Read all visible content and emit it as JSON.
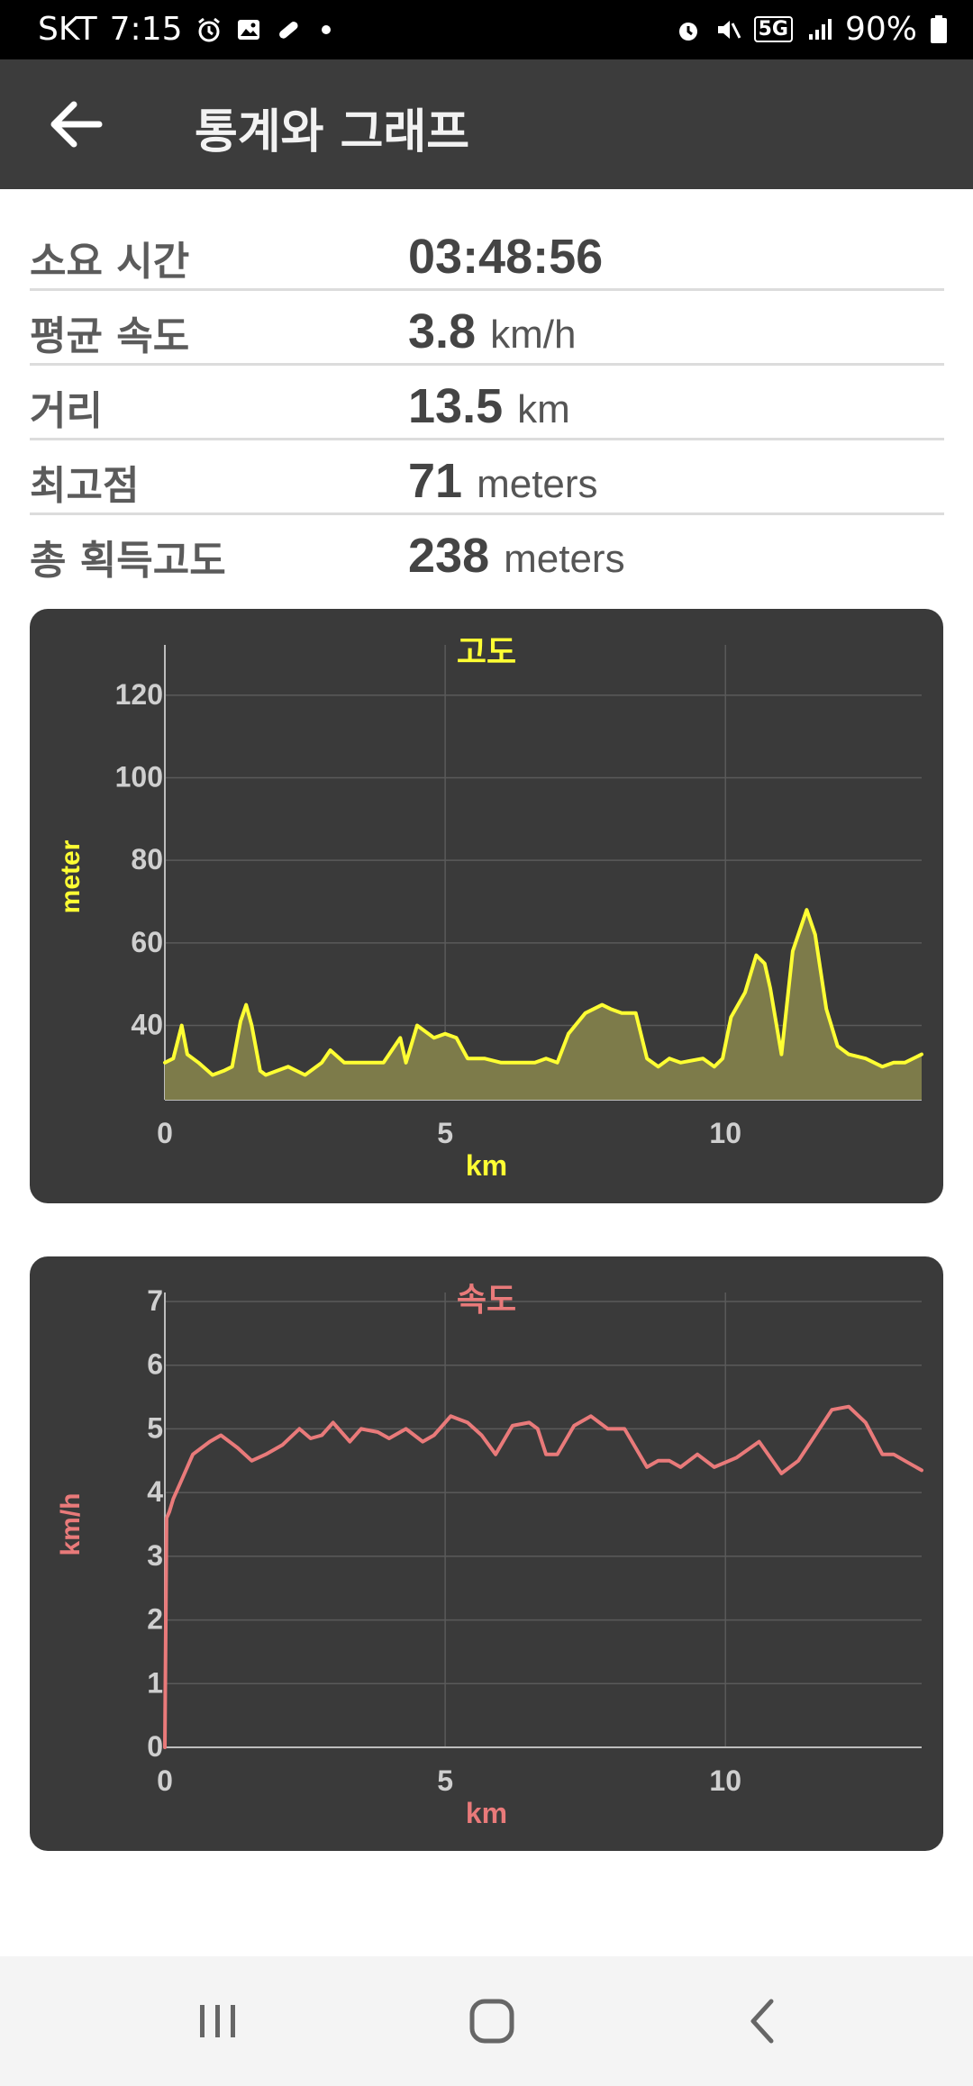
{
  "status_bar": {
    "carrier": "SKT",
    "time": "7:15",
    "battery": "90%",
    "network": "5G"
  },
  "app_bar": {
    "title": "통계와 그래프"
  },
  "stats": [
    {
      "label": "소요 시간",
      "value": "03:48:56",
      "unit": ""
    },
    {
      "label": "평균 속도",
      "value": "3.8",
      "unit": "km/h"
    },
    {
      "label": "거리",
      "value": "13.5",
      "unit": "km"
    },
    {
      "label": "최고점",
      "value": "71",
      "unit": "meters"
    },
    {
      "label": "총 획득고도",
      "value": "238",
      "unit": "meters"
    }
  ],
  "colors": {
    "elevation": "#ffff33",
    "elevation_fill": "#7d7b4a",
    "speed": "#e97a7a",
    "card": "#3a3a3a",
    "grid": "#5a5a5a",
    "tick": "#cfcfcf"
  },
  "chart_data": [
    {
      "type": "area",
      "title": "고도",
      "xlabel": "km",
      "ylabel": "meter",
      "xlim": [
        0,
        13.5
      ],
      "ylim": [
        22,
        130
      ],
      "x_ticks": [
        0,
        5,
        10
      ],
      "y_ticks": [
        40,
        60,
        80,
        100,
        120
      ],
      "grid": true,
      "x": [
        0,
        0.15,
        0.3,
        0.4,
        0.6,
        0.85,
        1.05,
        1.2,
        1.35,
        1.45,
        1.55,
        1.7,
        1.8,
        2.0,
        2.2,
        2.5,
        2.8,
        2.95,
        3.2,
        3.6,
        3.9,
        4.05,
        4.2,
        4.3,
        4.5,
        4.8,
        5.0,
        5.2,
        5.4,
        5.7,
        6.0,
        6.3,
        6.6,
        6.8,
        7.0,
        7.2,
        7.5,
        7.8,
        7.95,
        8.15,
        8.4,
        8.6,
        8.8,
        9.0,
        9.2,
        9.6,
        9.8,
        9.95,
        10.1,
        10.35,
        10.55,
        10.7,
        10.8,
        11.0,
        11.2,
        11.45,
        11.6,
        11.8,
        12.0,
        12.2,
        12.5,
        12.8,
        13.0,
        13.2,
        13.5
      ],
      "values": [
        31,
        32,
        40,
        33,
        31,
        28,
        29,
        30,
        41,
        45,
        40,
        29,
        28,
        29,
        30,
        28,
        31,
        34,
        31,
        31,
        31,
        34,
        37,
        31,
        40,
        37,
        38,
        37,
        32,
        32,
        31,
        31,
        31,
        32,
        31,
        38,
        43,
        45,
        44,
        43,
        43,
        32,
        30,
        32,
        31,
        32,
        30,
        32,
        42,
        48,
        57,
        55,
        49,
        33,
        58,
        68,
        62,
        44,
        35,
        33,
        32,
        30,
        31,
        31,
        33
      ]
    },
    {
      "type": "line",
      "title": "속도",
      "xlabel": "km",
      "ylabel": "km/h",
      "xlim": [
        0,
        13.5
      ],
      "ylim": [
        0,
        7
      ],
      "x_ticks": [
        0,
        5,
        10
      ],
      "y_ticks": [
        0,
        1,
        2,
        3,
        4,
        5,
        6,
        7
      ],
      "grid": true,
      "x": [
        0,
        0.03,
        0.08,
        0.15,
        0.3,
        0.5,
        0.8,
        1.0,
        1.3,
        1.55,
        1.8,
        2.1,
        2.4,
        2.6,
        2.8,
        3.0,
        3.3,
        3.5,
        3.8,
        4.0,
        4.3,
        4.6,
        4.8,
        5.1,
        5.4,
        5.65,
        5.9,
        6.2,
        6.5,
        6.65,
        6.8,
        7.0,
        7.3,
        7.6,
        7.9,
        8.2,
        8.6,
        8.8,
        9.0,
        9.2,
        9.5,
        9.8,
        10.2,
        10.6,
        11.0,
        11.3,
        11.6,
        11.9,
        12.2,
        12.5,
        12.8,
        13.0,
        13.2,
        13.5
      ],
      "values": [
        0,
        3.6,
        3.7,
        3.9,
        4.2,
        4.6,
        4.8,
        4.9,
        4.7,
        4.5,
        4.6,
        4.75,
        5.0,
        4.85,
        4.9,
        5.1,
        4.8,
        5.0,
        4.95,
        4.85,
        5.0,
        4.8,
        4.9,
        5.2,
        5.1,
        4.9,
        4.6,
        5.05,
        5.1,
        5.0,
        4.6,
        4.6,
        5.05,
        5.2,
        5.0,
        5.0,
        4.4,
        4.5,
        4.5,
        4.4,
        4.6,
        4.4,
        4.55,
        4.8,
        4.3,
        4.5,
        4.9,
        5.3,
        5.35,
        5.1,
        4.6,
        4.6,
        4.5,
        4.35
      ]
    }
  ]
}
